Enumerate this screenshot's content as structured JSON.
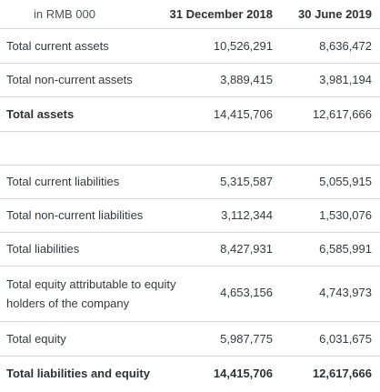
{
  "header": {
    "unit_label": "in RMB 000",
    "col1_label": "31 December 2018",
    "col2_label": "30 June 2019"
  },
  "rows": [
    {
      "label": "Total current assets",
      "v1": "10,526,291",
      "v2": "8,636,472"
    },
    {
      "label": "Total non-current assets",
      "v1": "3,889,415",
      "v2": "3,981,194"
    },
    {
      "label": "Total assets",
      "v1": "14,415,706",
      "v2": "12,617,666"
    },
    {
      "label": "Total current liabilities",
      "v1": "5,315,587",
      "v2": "5,055,915"
    },
    {
      "label": "Total non-current liabilities",
      "v1": "3,112,344",
      "v2": "1,530,076"
    },
    {
      "label": "Total liabilities",
      "v1": "8,427,931",
      "v2": "6,585,991"
    },
    {
      "label": "Total equity attributable to equity holders of the company",
      "v1": "4,653,156",
      "v2": "4,743,973"
    },
    {
      "label": "Total equity",
      "v1": "5,987,775",
      "v2": "6,031,675"
    },
    {
      "label": "Total liabilities and equity",
      "v1": "14,415,706",
      "v2": "12,617,666"
    }
  ]
}
